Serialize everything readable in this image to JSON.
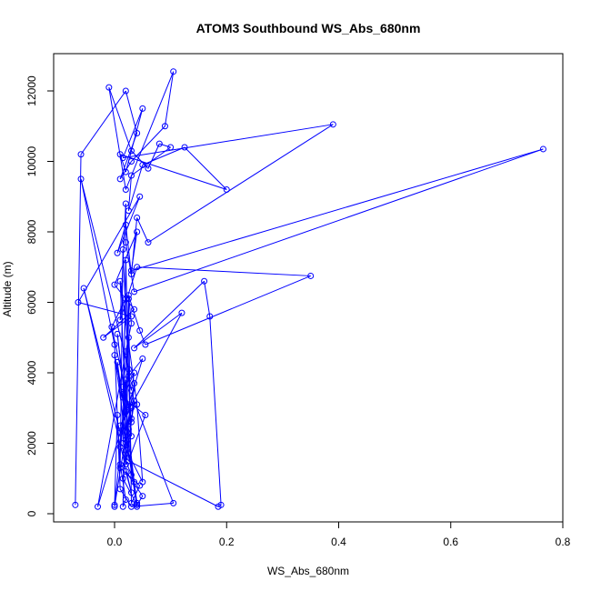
{
  "chart_data": {
    "type": "scatter",
    "title": "ATOM3 Southbound WS_Abs_680nm",
    "xlabel": "WS_Abs_680nm",
    "ylabel": "Altitude (m)",
    "xlim": [
      -0.08,
      0.8
    ],
    "ylim": [
      0,
      12600
    ],
    "xticks": [
      0.0,
      0.2,
      0.4,
      0.6,
      0.8
    ],
    "xtick_labels": [
      "0.0",
      "0.2",
      "0.4",
      "0.6",
      "0.8"
    ],
    "yticks": [
      0,
      2000,
      4000,
      6000,
      8000,
      10000,
      12000
    ],
    "ytick_labels": [
      "0",
      "2000",
      "4000",
      "6000",
      "8000",
      "10000",
      "12000"
    ],
    "grid": false,
    "legend": false,
    "style": "points connected by lines",
    "series": [
      {
        "color": "#0000ff",
        "x": [
          -0.07,
          -0.06,
          0.02,
          0.04,
          0.01,
          0.03,
          0.09,
          0.105,
          0.02,
          -0.01,
          0.03,
          0.06,
          0.08,
          0.1,
          0.03,
          0.025,
          0.05,
          0.125,
          0.2,
          0.01,
          0.02,
          0.05,
          0.015,
          0.39,
          0.06,
          0.04,
          0.03,
          0.02,
          0.005,
          0.045,
          -0.065,
          0.03,
          -0.02,
          0.035,
          0.0,
          0.04,
          0.03,
          0.765,
          0.035,
          0.02,
          0.02,
          0.01,
          0.04,
          0.35,
          0.055,
          0.045,
          0.025,
          0.03,
          0.02,
          -0.03,
          0.05,
          0.025,
          0.03,
          0.035,
          0.015,
          0.055,
          0.025,
          0.185,
          0.19,
          0.17,
          0.16,
          0.035,
          0.12,
          0.01,
          0.03,
          0.02,
          0.035,
          0.04,
          0.005,
          0.02,
          0.015,
          0.04,
          0.05,
          0.02,
          0.03,
          -0.055,
          0.01,
          0.03,
          0.035,
          0.0,
          0.025,
          -0.06,
          0.0,
          0.01,
          0.03,
          0.105,
          0.035,
          0.02,
          0.025,
          0.015,
          0.03,
          -0.005,
          0.02,
          0.015,
          0.025,
          0.0,
          0.02,
          0.01,
          0.04,
          0.05,
          0.015,
          0.02,
          0.03,
          0.01,
          0.02,
          0.025,
          0.04,
          0.005,
          0.025,
          0.03,
          0.015,
          0.01,
          0.045,
          0.03,
          0.025,
          0.015,
          0.02,
          0.01,
          0.005,
          0.0
        ],
        "y": [
          250,
          10200,
          12000,
          10800,
          9500,
          10000,
          11000,
          12550,
          9200,
          12100,
          10300,
          9800,
          10500,
          10400,
          9600,
          8600,
          9900,
          10400,
          9200,
          10200,
          9700,
          11500,
          10100,
          11050,
          7700,
          8400,
          6800,
          8200,
          7400,
          9000,
          6000,
          5600,
          5000,
          5800,
          6500,
          8000,
          6900,
          10350,
          6300,
          7700,
          8800,
          5500,
          7000,
          6750,
          4800,
          5200,
          6200,
          5400,
          4600,
          200,
          4400,
          3900,
          3500,
          4000,
          3300,
          2800,
          1500,
          200,
          250,
          5600,
          6600,
          4700,
          5700,
          2500,
          3000,
          2100,
          900,
          300,
          4300,
          1800,
          1000,
          250,
          500,
          1200,
          600,
          6400,
          2300,
          2600,
          3700,
          200,
          4100,
          9500,
          4800,
          700,
          200,
          300,
          3200,
          1400,
          5000,
          3600,
          2700,
          5300,
          6100,
          3400,
          1600,
          4500,
          2900,
          6600,
          3100,
          900,
          2000,
          7200,
          1100,
          1900,
          3800,
          1700,
          200,
          5100,
          2400,
          2200,
          7500,
          1300,
          800,
          300,
          6100,
          200,
          400,
          1400,
          2800,
          250
        ]
      }
    ]
  }
}
